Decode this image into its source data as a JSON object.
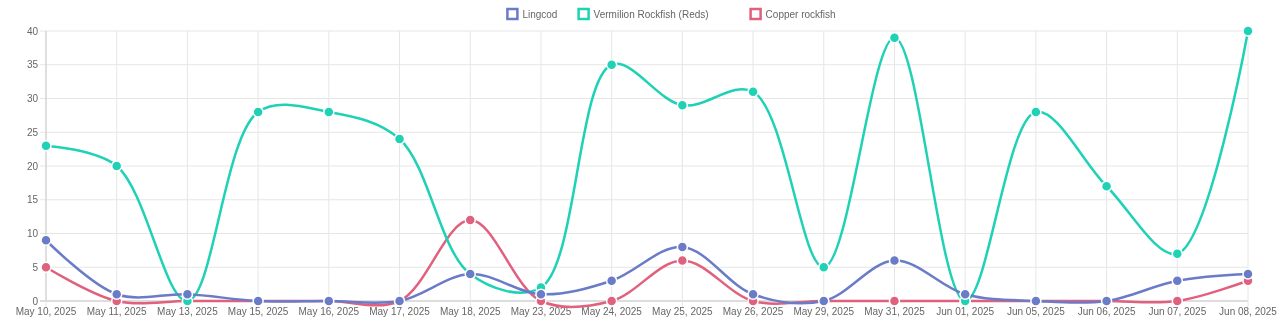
{
  "chart_data": {
    "type": "line",
    "categories": [
      "May 10, 2025",
      "May 11, 2025",
      "May 13, 2025",
      "May 15, 2025",
      "May 16, 2025",
      "May 17, 2025",
      "May 18, 2025",
      "May 23, 2025",
      "May 24, 2025",
      "May 25, 2025",
      "May 26, 2025",
      "May 29, 2025",
      "May 31, 2025",
      "Jun 01, 2025",
      "Jun 05, 2025",
      "Jun 06, 2025",
      "Jun 07, 2025",
      "Jun 08, 2025"
    ],
    "series": [
      {
        "name": "Lingcod",
        "color": "#6a7bc8",
        "values": [
          9,
          1,
          1,
          0,
          0,
          0,
          4,
          1,
          3,
          8,
          1,
          0,
          6,
          1,
          0,
          0,
          3,
          4
        ]
      },
      {
        "name": "Vermilion Rockfish (Reds)",
        "color": "#1fd1b5",
        "values": [
          23,
          20,
          0,
          28,
          28,
          24,
          4,
          2,
          35,
          29,
          31,
          5,
          39,
          0,
          28,
          17,
          7,
          40
        ]
      },
      {
        "name": "Copper rockfish",
        "color": "#e0607e",
        "values": [
          5,
          0,
          0,
          0,
          0,
          0,
          12,
          0,
          0,
          6,
          0,
          0,
          0,
          0,
          0,
          0,
          0,
          3
        ]
      }
    ],
    "ylim": [
      0,
      40
    ],
    "yticks": [
      0,
      5,
      10,
      15,
      20,
      25,
      30,
      35,
      40
    ],
    "grid": true,
    "legend": "top",
    "marker": "circle",
    "line_style": "solid"
  }
}
